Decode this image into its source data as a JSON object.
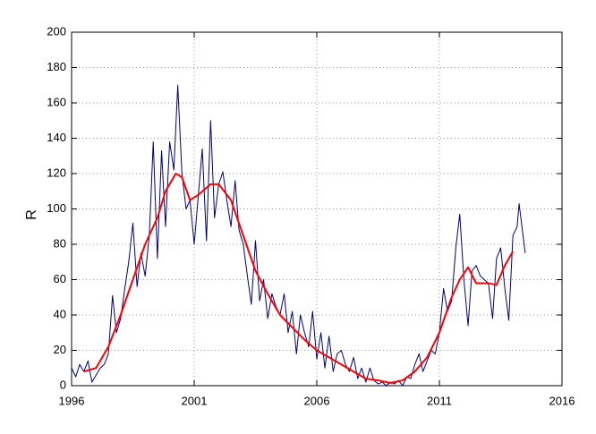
{
  "chart_data": {
    "type": "line",
    "ylabel": "R",
    "xlim": [
      1996,
      2016
    ],
    "xticks": [
      1996,
      2001,
      2006,
      2011,
      2016
    ],
    "ylim": [
      0,
      200
    ],
    "yticks": [
      0,
      20,
      40,
      60,
      80,
      100,
      120,
      140,
      160,
      180,
      200
    ],
    "grid": true,
    "series": [
      {
        "color": "#000080",
        "x": [
          1996.0,
          1996.17,
          1996.33,
          1996.5,
          1996.67,
          1996.83,
          1997.0,
          1997.17,
          1997.33,
          1997.5,
          1997.67,
          1997.83,
          1998.0,
          1998.17,
          1998.33,
          1998.5,
          1998.67,
          1998.83,
          1999.0,
          1999.17,
          1999.33,
          1999.5,
          1999.67,
          1999.83,
          2000.0,
          2000.17,
          2000.33,
          2000.5,
          2000.67,
          2000.83,
          2001.0,
          2001.17,
          2001.33,
          2001.5,
          2001.67,
          2001.83,
          2002.0,
          2002.17,
          2002.33,
          2002.5,
          2002.67,
          2002.83,
          2003.0,
          2003.17,
          2003.33,
          2003.5,
          2003.67,
          2003.83,
          2004.0,
          2004.17,
          2004.33,
          2004.5,
          2004.67,
          2004.83,
          2005.0,
          2005.17,
          2005.33,
          2005.5,
          2005.67,
          2005.83,
          2006.0,
          2006.17,
          2006.33,
          2006.5,
          2006.67,
          2006.83,
          2007.0,
          2007.17,
          2007.33,
          2007.5,
          2007.67,
          2007.83,
          2008.0,
          2008.17,
          2008.33,
          2008.5,
          2008.67,
          2008.83,
          2009.0,
          2009.17,
          2009.33,
          2009.5,
          2009.67,
          2009.83,
          2010.0,
          2010.17,
          2010.33,
          2010.5,
          2010.67,
          2010.83,
          2011.0,
          2011.17,
          2011.33,
          2011.5,
          2011.67,
          2011.83,
          2012.0,
          2012.17,
          2012.33,
          2012.5,
          2012.67,
          2012.83,
          2013.0,
          2013.17,
          2013.33,
          2013.5,
          2013.67,
          2013.83,
          2014.0,
          2014.17,
          2014.25,
          2014.5
        ],
        "values": [
          10,
          5,
          12,
          8,
          14,
          2,
          6,
          10,
          12,
          18,
          51,
          30,
          38,
          55,
          70,
          92,
          56,
          75,
          62,
          85,
          138,
          72,
          133,
          90,
          138,
          122,
          170,
          120,
          100,
          105,
          80,
          108,
          134,
          82,
          150,
          95,
          114,
          121,
          105,
          90,
          116,
          88,
          80,
          62,
          46,
          82,
          48,
          60,
          38,
          52,
          45,
          40,
          52,
          30,
          42,
          18,
          40,
          30,
          22,
          42,
          15,
          30,
          10,
          28,
          8,
          18,
          20,
          12,
          8,
          16,
          4,
          10,
          2,
          10,
          3,
          1,
          2,
          0,
          2,
          1,
          3,
          0,
          5,
          4,
          12,
          18,
          8,
          14,
          20,
          18,
          30,
          55,
          42,
          48,
          78,
          97,
          60,
          34,
          65,
          68,
          62,
          60,
          58,
          38,
          72,
          78,
          55,
          37,
          85,
          90,
          103,
          75
        ]
      },
      {
        "color": "#ff0000",
        "x": [
          1996.5,
          1997.0,
          1997.5,
          1998.0,
          1998.5,
          1999.0,
          1999.5,
          1999.83,
          2000.25,
          2000.5,
          2000.83,
          2001.17,
          2001.67,
          2002.0,
          2002.5,
          2003.0,
          2003.5,
          2004.0,
          2004.5,
          2005.0,
          2005.5,
          2006.0,
          2006.5,
          2007.0,
          2007.5,
          2008.0,
          2008.5,
          2009.0,
          2009.5,
          2010.0,
          2010.5,
          2011.0,
          2011.5,
          2011.83,
          2012.17,
          2012.5,
          2013.0,
          2013.33,
          2013.67,
          2014.0
        ],
        "values": [
          8,
          10,
          22,
          40,
          60,
          80,
          95,
          110,
          120,
          118,
          105,
          108,
          114,
          114,
          105,
          85,
          65,
          52,
          40,
          33,
          26,
          20,
          16,
          12,
          8,
          4,
          3,
          1.5,
          3,
          8,
          16,
          30,
          50,
          60,
          67,
          58,
          58,
          57,
          68,
          76
        ]
      }
    ]
  }
}
